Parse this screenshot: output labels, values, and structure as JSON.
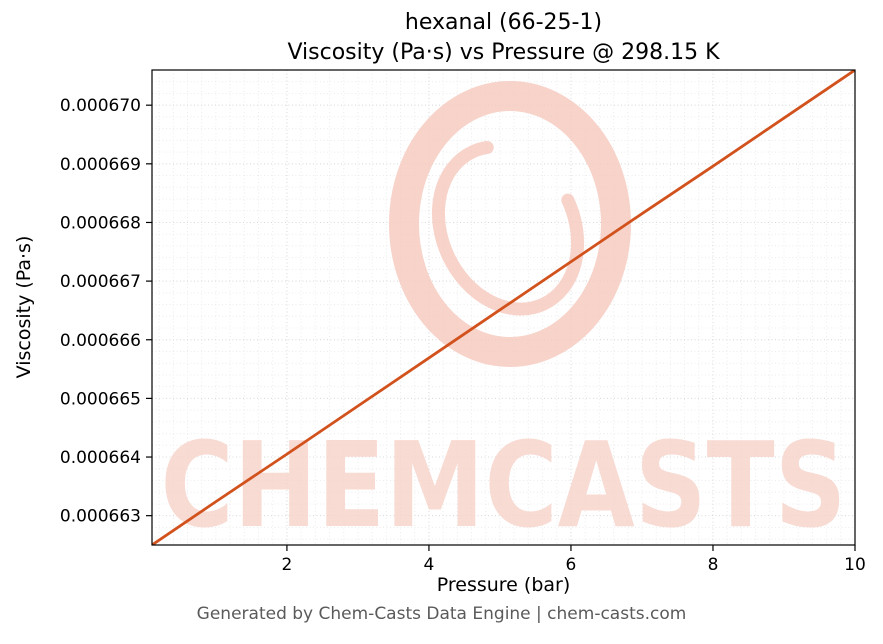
{
  "header": {
    "title_line1": "hexanal (66-25-1)",
    "title_line2": "Viscosity (Pa·s) vs Pressure @ 298.15 K"
  },
  "footer": {
    "text": "Generated by Chem-Casts Data Engine | chem-casts.com"
  },
  "watermark": {
    "text": "CHEMCASTS",
    "logo": "brush-circle-logo",
    "logo_color": "#f5c9bd",
    "text_color": "#f7d2c8",
    "opacity": 0.8
  },
  "colors": {
    "line": "#d2521e",
    "grid_major": "#d9d9d9",
    "grid_minor": "#ececec",
    "spine": "#000000",
    "tick_text": "#000000",
    "footer_text": "#5a5a5a"
  },
  "chart_data": {
    "type": "line",
    "title": "hexanal (66-25-1)",
    "subtitle": "Viscosity (Pa·s) vs Pressure @ 298.15 K",
    "xlabel": "Pressure (bar)",
    "ylabel": "Viscosity (Pa·s)",
    "grid": true,
    "legend": "none",
    "xlim": [
      0.1,
      10
    ],
    "ylim": [
      0.0006625,
      0.0006706
    ],
    "x": [
      0.1,
      1,
      2,
      3,
      4,
      5,
      6,
      7,
      8,
      9,
      10
    ],
    "series": [
      {
        "name": "viscosity_Pa_s",
        "values": [
          0.0006625,
          0.00066324,
          0.00066405,
          0.00066487,
          0.00066569,
          0.00066651,
          0.00066733,
          0.00066815,
          0.00066896,
          0.00066978,
          0.0006706
        ]
      }
    ],
    "x_ticks": {
      "values": [
        2,
        4,
        6,
        8,
        10
      ],
      "labels": [
        "2",
        "4",
        "6",
        "8",
        "10"
      ]
    },
    "y_ticks": {
      "values": [
        0.000663,
        0.000664,
        0.000665,
        0.000666,
        0.000667,
        0.000668,
        0.000669,
        0.00067
      ],
      "labels": [
        "0.000663",
        "0.000664",
        "0.000665",
        "0.000666",
        "0.000667",
        "0.000668",
        "0.000669",
        "0.000670"
      ]
    },
    "minor_step_x": 0.2,
    "minor_step_y": 2e-07
  }
}
